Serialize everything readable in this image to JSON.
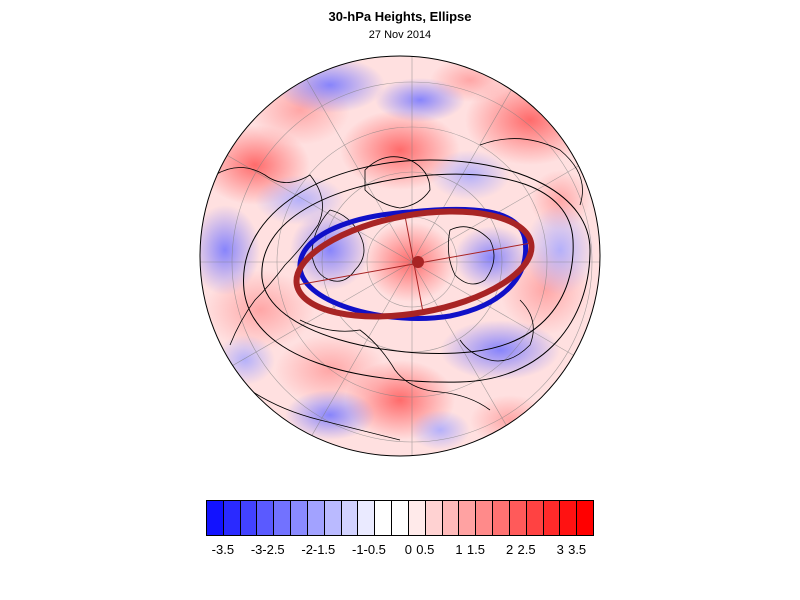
{
  "title": "30-hPa Heights, Ellipse",
  "subtitle": "27 Nov 2014",
  "map": {
    "projection": "north polar stereographic",
    "field": "30-hPa height anomaly",
    "legend_placement": "bottom",
    "ellipse_color": "#a82424",
    "contour_color": "#1010c8",
    "boundary_color": "#000000"
  },
  "colorbar": {
    "labels": [
      "-3.5",
      "-3",
      "-2.5",
      "-2",
      "-1.5",
      "-1",
      "-0.5",
      "0",
      "0.5",
      "1",
      "1.5",
      "2",
      "2.5",
      "3",
      "3.5"
    ],
    "colors": [
      "#1212ff",
      "#2a2aff",
      "#4242ff",
      "#5a5aff",
      "#7272ff",
      "#8a8aff",
      "#a2a2ff",
      "#babaff",
      "#d2d2ff",
      "#eaeaff",
      "#ffffff",
      "#ffffff",
      "#ffeaea",
      "#ffd2d2",
      "#ffbaba",
      "#ffa2a2",
      "#ff8a8a",
      "#ff7272",
      "#ff5a5a",
      "#ff4242",
      "#ff2a2a",
      "#ff1212",
      "#ff0000"
    ]
  }
}
